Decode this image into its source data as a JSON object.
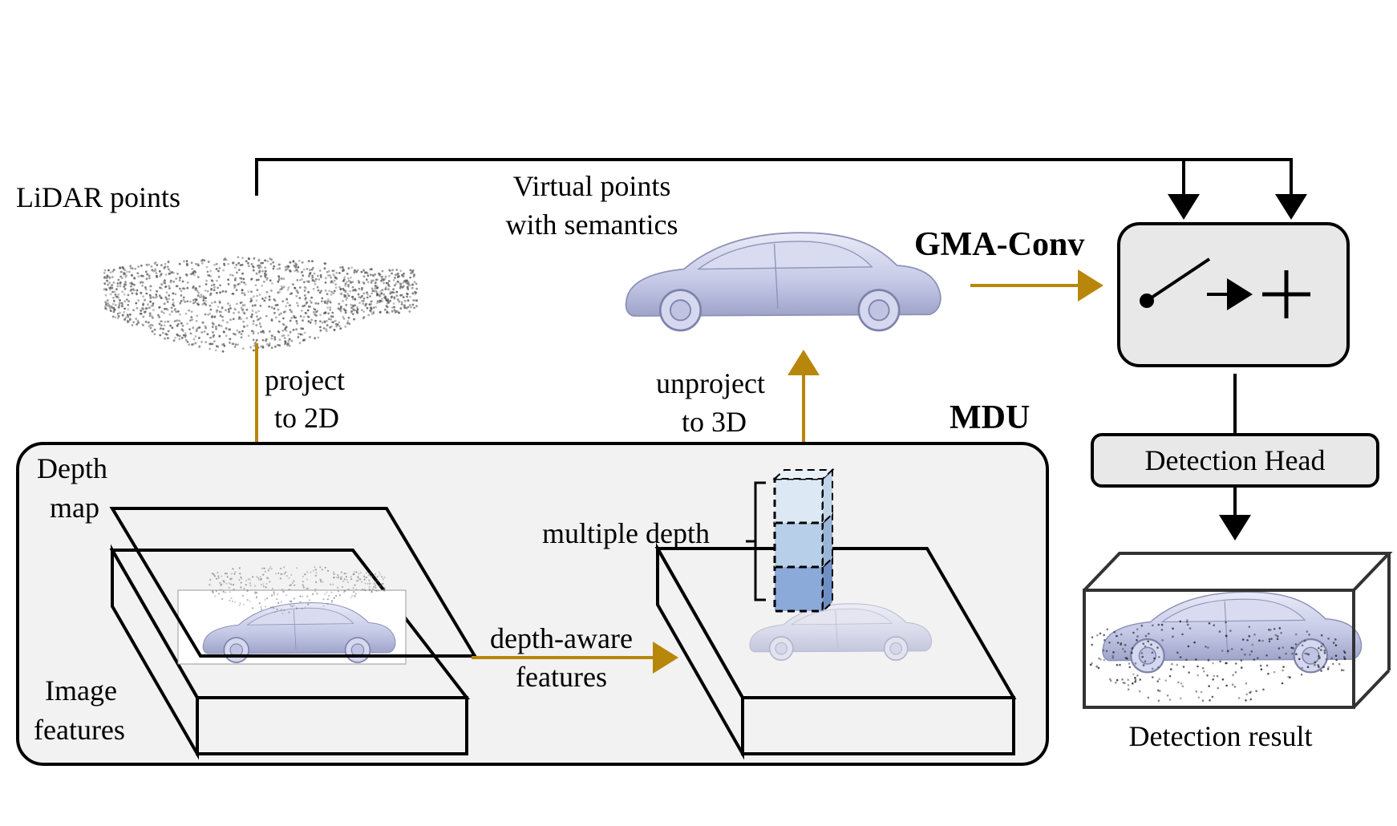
{
  "labels": {
    "lidar_points": "LiDAR points",
    "virtual_points_1": "Virtual points",
    "virtual_points_2": "with semantics",
    "gma_conv": "GMA-Conv",
    "project_1": "project",
    "project_2": "to 2D",
    "unproject_1": "unproject",
    "unproject_2": "to 3D",
    "mdu": "MDU",
    "depth_map_1": "Depth",
    "depth_map_2": "map",
    "image_features_1": "Image",
    "image_features_2": "features",
    "multiple_depth": "multiple depth",
    "depth_aware_1": "depth-aware",
    "depth_aware_2": "features",
    "detection_head": "Detection Head",
    "detection_result": "Detection result"
  },
  "colors": {
    "arrow_gold": "#b8860b",
    "mdu_fill": "#f2f2f2",
    "gma_fill": "#e8e8e8",
    "car_body": "#c9cce8",
    "cube_top": "#dce9f5",
    "cube_mid": "#b7cfe9",
    "cube_bottom": "#8ba9d9"
  },
  "icons": [
    "switch-icon",
    "arrow-right-icon",
    "plus-icon"
  ]
}
